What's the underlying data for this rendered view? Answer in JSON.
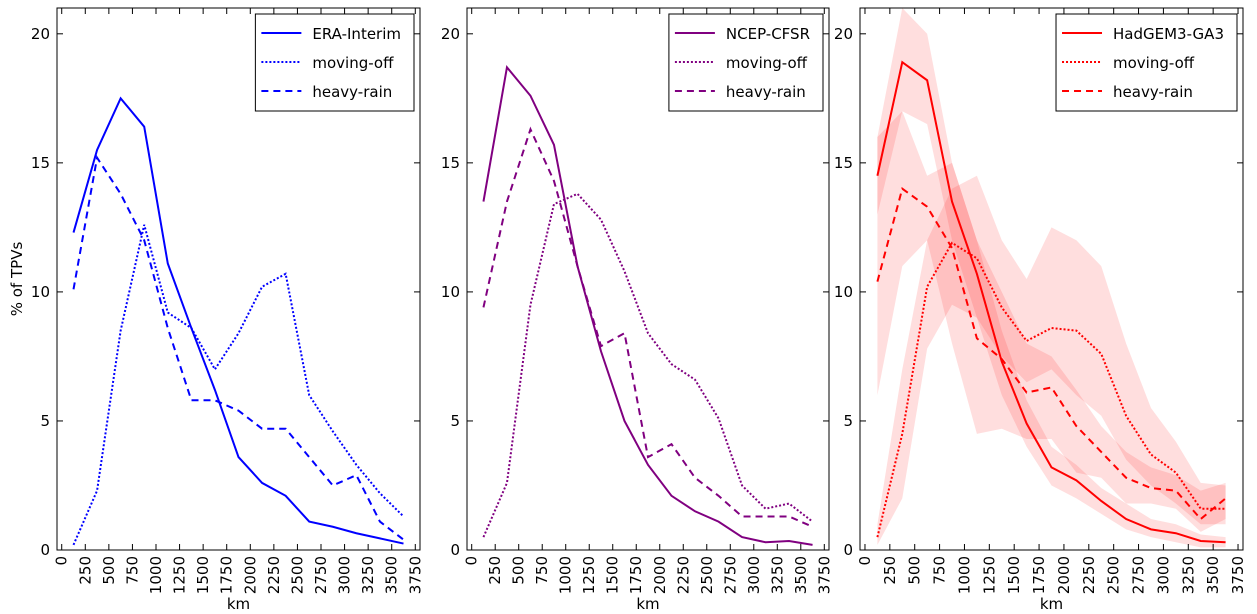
{
  "chart_data": [
    {
      "type": "line",
      "ylabel": "% of TPVs",
      "xlabel": "km",
      "x": [
        125,
        375,
        625,
        875,
        1125,
        1375,
        1625,
        1875,
        2125,
        2375,
        2625,
        2875,
        3125,
        3375,
        3625
      ],
      "xlim": [
        -50,
        3800
      ],
      "ylim": [
        0,
        21
      ],
      "xticks": [
        0,
        250,
        500,
        750,
        1000,
        1250,
        1500,
        1750,
        2000,
        2250,
        2500,
        2750,
        3000,
        3250,
        3500,
        3750
      ],
      "yticks": [
        0,
        5,
        10,
        15,
        20
      ],
      "legend": "upper right",
      "series": [
        {
          "name": "ERA-Interim",
          "color": "#0000ff",
          "dash": "solid",
          "values": [
            12.3,
            15.5,
            17.5,
            16.4,
            11.1,
            8.6,
            6.2,
            3.6,
            2.6,
            2.1,
            1.1,
            0.9,
            0.65,
            0.45,
            0.25
          ]
        },
        {
          "name": "moving-off",
          "color": "#0000ff",
          "dash": "dotted",
          "values": [
            0.2,
            2.3,
            8.5,
            12.6,
            9.2,
            8.6,
            7.0,
            8.4,
            10.2,
            10.7,
            6.0,
            4.6,
            3.3,
            2.2,
            1.3
          ]
        },
        {
          "name": "heavy-rain",
          "color": "#0000ff",
          "dash": "dashed",
          "values": [
            10.1,
            15.2,
            13.8,
            12.0,
            8.6,
            5.8,
            5.8,
            5.4,
            4.7,
            4.7,
            3.6,
            2.5,
            2.9,
            1.1,
            0.4
          ]
        }
      ]
    },
    {
      "type": "line",
      "xlabel": "km",
      "x": [
        125,
        375,
        625,
        875,
        1125,
        1375,
        1625,
        1875,
        2125,
        2375,
        2625,
        2875,
        3125,
        3375,
        3625
      ],
      "xlim": [
        -50,
        3800
      ],
      "ylim": [
        0,
        21
      ],
      "xticks": [
        0,
        250,
        500,
        750,
        1000,
        1250,
        1500,
        1750,
        2000,
        2250,
        2500,
        2750,
        3000,
        3250,
        3500,
        3750
      ],
      "yticks": [
        0,
        5,
        10,
        15,
        20
      ],
      "legend": "upper right",
      "series": [
        {
          "name": "NCEP-CFSR",
          "color": "#800080",
          "dash": "solid",
          "values": [
            13.5,
            18.7,
            17.6,
            15.7,
            11.0,
            7.7,
            5.0,
            3.3,
            2.1,
            1.5,
            1.1,
            0.5,
            0.3,
            0.35,
            0.2
          ]
        },
        {
          "name": "moving-off",
          "color": "#800080",
          "dash": "dotted",
          "values": [
            0.5,
            2.6,
            9.5,
            13.4,
            13.8,
            12.8,
            10.8,
            8.4,
            7.2,
            6.6,
            5.1,
            2.5,
            1.6,
            1.8,
            1.1
          ]
        },
        {
          "name": "heavy-rain",
          "color": "#800080",
          "dash": "dashed",
          "values": [
            9.4,
            13.5,
            16.3,
            14.3,
            11.0,
            7.9,
            8.4,
            3.6,
            4.1,
            2.8,
            2.1,
            1.3,
            1.3,
            1.3,
            0.9
          ]
        }
      ]
    },
    {
      "type": "line",
      "xlabel": "km",
      "x": [
        125,
        375,
        625,
        875,
        1125,
        1375,
        1625,
        1875,
        2125,
        2375,
        2625,
        2875,
        3125,
        3375,
        3625
      ],
      "xlim": [
        -50,
        3800
      ],
      "ylim": [
        0,
        21
      ],
      "xticks": [
        0,
        250,
        500,
        750,
        1000,
        1250,
        1500,
        1750,
        2000,
        2250,
        2500,
        2750,
        3000,
        3250,
        3500,
        3750
      ],
      "yticks": [
        0,
        5,
        10,
        15,
        20
      ],
      "legend": "upper right",
      "series": [
        {
          "name": "HadGEM3-GA3",
          "color": "#ff0000",
          "dash": "solid",
          "values": [
            14.5,
            18.9,
            18.2,
            13.5,
            10.7,
            7.3,
            4.9,
            3.2,
            2.7,
            1.9,
            1.2,
            0.8,
            0.65,
            0.35,
            0.3
          ],
          "lower": [
            13,
            17,
            16.5,
            12,
            9,
            6,
            4,
            2.5,
            2,
            1.4,
            0.8,
            0.5,
            0.3,
            0.1,
            0.1
          ],
          "upper": [
            16,
            21,
            20,
            15,
            12,
            8.5,
            5.8,
            4,
            3.3,
            2.4,
            1.8,
            1.2,
            1,
            0.6,
            0.5
          ]
        },
        {
          "name": "moving-off",
          "color": "#ff0000",
          "dash": "dotted",
          "values": [
            0.5,
            4.5,
            10.2,
            11.9,
            11.3,
            9.4,
            8.1,
            8.6,
            8.5,
            7.6,
            5.2,
            3.7,
            3.0,
            1.6,
            1.6
          ],
          "lower": [
            0.2,
            2,
            7.8,
            9.5,
            9.0,
            7.5,
            6.5,
            7,
            6,
            5.2,
            3.5,
            2.5,
            1.8,
            1.0,
            1.0
          ],
          "upper": [
            1,
            7,
            12,
            14,
            14.5,
            12,
            10.5,
            12.5,
            12,
            11,
            8,
            5.5,
            4.2,
            2.6,
            2.5
          ]
        },
        {
          "name": "heavy-rain",
          "color": "#ff0000",
          "dash": "dashed",
          "values": [
            10.4,
            14.0,
            13.3,
            11.7,
            8.2,
            7.4,
            6.1,
            6.3,
            4.8,
            3.8,
            2.8,
            2.4,
            2.3,
            1.2,
            2.0
          ],
          "lower": [
            6,
            11,
            12,
            8,
            4.5,
            4.7,
            4.3,
            4.3,
            3,
            2.8,
            1.8,
            1.8,
            1.6,
            0.7,
            1.2
          ],
          "upper": [
            16,
            17,
            14.5,
            15,
            12,
            10,
            8,
            7.5,
            6.2,
            4.8,
            3.8,
            3.2,
            2.9,
            2.3,
            2.6
          ]
        }
      ]
    }
  ]
}
